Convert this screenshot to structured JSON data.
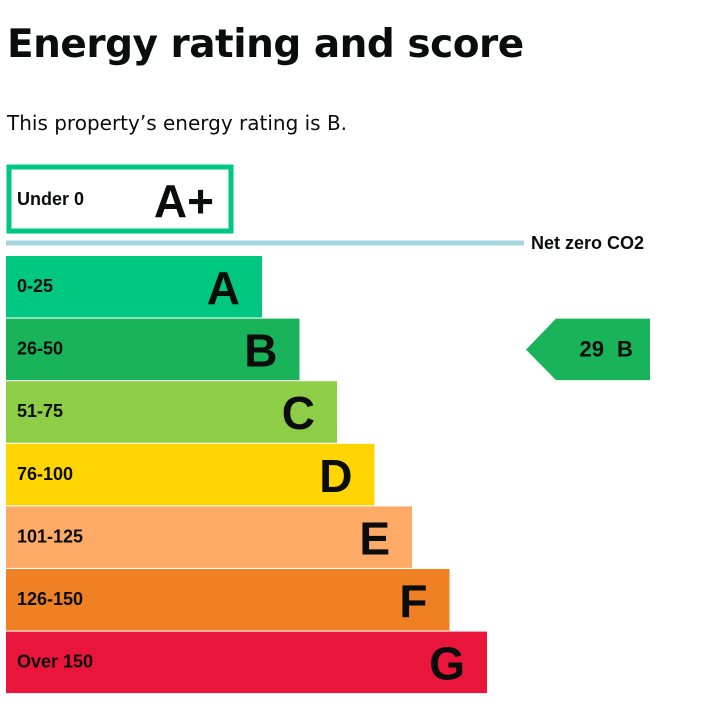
{
  "page": {
    "title": "Energy rating and score",
    "summary": "This property’s energy rating is B."
  },
  "chart_data": {
    "type": "bar",
    "title": "Energy rating and score",
    "top_band": {
      "range": "Under 0",
      "letter": "A+",
      "color": "#00c781"
    },
    "net_zero_label": "Net zero CO2",
    "net_zero_color": "#a5d7e2",
    "bands": [
      {
        "range": "0-25",
        "letter": "A",
        "color": "#00c781"
      },
      {
        "range": "26-50",
        "letter": "B",
        "color": "#19b459"
      },
      {
        "range": "51-75",
        "letter": "C",
        "color": "#8dce46"
      },
      {
        "range": "76-100",
        "letter": "D",
        "color": "#ffd500"
      },
      {
        "range": "101-125",
        "letter": "E",
        "color": "#fcaa65"
      },
      {
        "range": "126-150",
        "letter": "F",
        "color": "#ef8023"
      },
      {
        "range": "Over 150",
        "letter": "G",
        "color": "#e9153b"
      }
    ],
    "current": {
      "score": "29",
      "letter": "B",
      "color": "#19b459",
      "band_index": 1
    }
  }
}
